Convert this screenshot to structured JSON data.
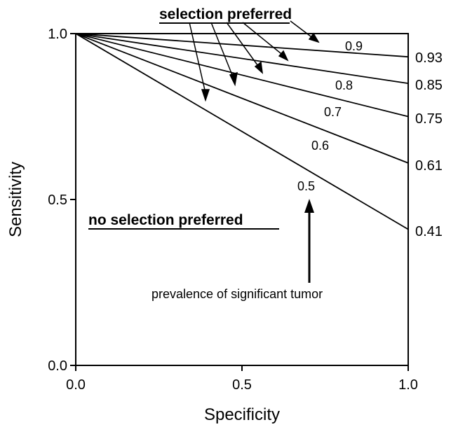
{
  "chart_data": {
    "type": "line",
    "xlabel": "Specificity",
    "ylabel": "Sensitivity",
    "xlim": [
      0.0,
      1.0
    ],
    "ylim": [
      0.0,
      1.0
    ],
    "xticks": [
      "0.0",
      "0.5",
      "1.0"
    ],
    "yticks": [
      "0.0",
      "0.5",
      "1.0"
    ],
    "grid": false,
    "series": [
      {
        "name": "0.9",
        "x": [
          0.0,
          1.0
        ],
        "y": [
          1.0,
          0.93
        ],
        "end_label": "0.93"
      },
      {
        "name": "0.8",
        "x": [
          0.0,
          1.0
        ],
        "y": [
          1.0,
          0.85
        ],
        "end_label": "0.85"
      },
      {
        "name": "0.7",
        "x": [
          0.0,
          1.0
        ],
        "y": [
          1.0,
          0.75
        ],
        "end_label": "0.75"
      },
      {
        "name": "0.6",
        "x": [
          0.0,
          1.0
        ],
        "y": [
          1.0,
          0.61
        ],
        "end_label": "0.61"
      },
      {
        "name": "0.5",
        "x": [
          0.0,
          1.0
        ],
        "y": [
          1.0,
          0.41
        ],
        "end_label": "0.41"
      }
    ],
    "annotations": {
      "above": "selection preferred",
      "below": "no selection preferred",
      "arrow_caption": "prevalence of significant tumor"
    }
  }
}
